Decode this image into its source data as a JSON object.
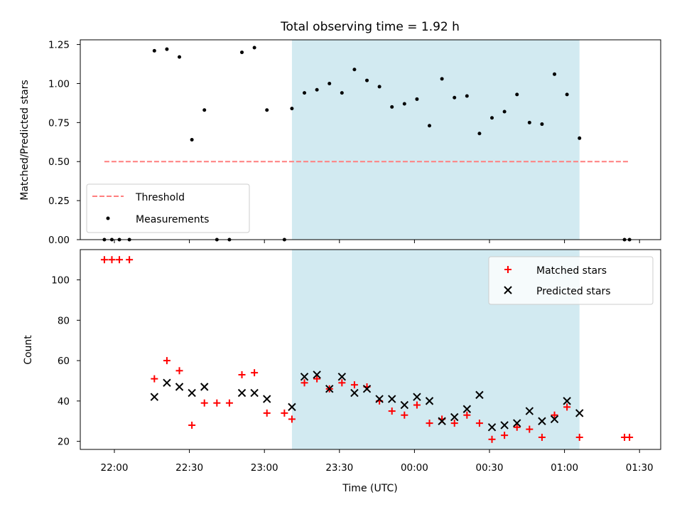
{
  "figure": {
    "title": "Total observing time = 1.92 h",
    "xlabel": "Time (UTC)"
  },
  "chart_data": [
    {
      "type": "scatter",
      "panel": "top",
      "ylabel": "Matched/Predicted stars",
      "ylim": [
        0,
        1.28
      ],
      "yticks": [
        "0.00",
        "0.25",
        "0.50",
        "0.75",
        "1.00",
        "1.25"
      ],
      "shaded_interval": {
        "start": "23:11",
        "end": "01:06",
        "color": "#add8e6"
      },
      "threshold": {
        "name": "Threshold",
        "value": 0.5,
        "from": "21:56",
        "to": "01:26",
        "color": "#ff7f7f",
        "style": "dashed"
      },
      "series": [
        {
          "name": "Measurements",
          "color": "#000000",
          "marker": "dot",
          "points": [
            [
              "21:56",
              0.0
            ],
            [
              "21:59",
              0.0
            ],
            [
              "22:02",
              0.0
            ],
            [
              "22:06",
              0.0
            ],
            [
              "22:16",
              1.21
            ],
            [
              "22:21",
              1.22
            ],
            [
              "22:26",
              1.17
            ],
            [
              "22:31",
              0.64
            ],
            [
              "22:36",
              0.83
            ],
            [
              "22:41",
              0.0
            ],
            [
              "22:46",
              0.0
            ],
            [
              "22:51",
              1.2
            ],
            [
              "22:56",
              1.23
            ],
            [
              "23:01",
              0.83
            ],
            [
              "23:08",
              0.0
            ],
            [
              "23:11",
              0.84
            ],
            [
              "23:16",
              0.94
            ],
            [
              "23:21",
              0.96
            ],
            [
              "23:26",
              1.0
            ],
            [
              "23:31",
              0.94
            ],
            [
              "23:36",
              1.09
            ],
            [
              "23:41",
              1.02
            ],
            [
              "23:46",
              0.98
            ],
            [
              "23:51",
              0.85
            ],
            [
              "23:56",
              0.87
            ],
            [
              "00:01",
              0.9
            ],
            [
              "00:06",
              0.73
            ],
            [
              "00:11",
              1.03
            ],
            [
              "00:16",
              0.91
            ],
            [
              "00:21",
              0.92
            ],
            [
              "00:26",
              0.68
            ],
            [
              "00:31",
              0.78
            ],
            [
              "00:36",
              0.82
            ],
            [
              "00:41",
              0.93
            ],
            [
              "00:46",
              0.75
            ],
            [
              "00:51",
              0.74
            ],
            [
              "00:56",
              1.06
            ],
            [
              "01:01",
              0.93
            ],
            [
              "01:06",
              0.65
            ],
            [
              "01:24",
              0.0
            ],
            [
              "01:26",
              0.0
            ]
          ]
        }
      ]
    },
    {
      "type": "scatter",
      "panel": "bottom",
      "ylabel": "Count",
      "ylim": [
        16,
        115
      ],
      "yticks": [
        "20",
        "40",
        "60",
        "80",
        "100"
      ],
      "xticks": [
        "22:00",
        "22:30",
        "23:00",
        "23:30",
        "00:00",
        "00:30",
        "01:00",
        "01:30"
      ],
      "shaded_interval": {
        "start": "23:11",
        "end": "01:06",
        "color": "#add8e6"
      },
      "series": [
        {
          "name": "Matched stars",
          "color": "#ff0000",
          "marker": "plus",
          "points": [
            [
              "21:56",
              110
            ],
            [
              "21:59",
              110
            ],
            [
              "22:02",
              110
            ],
            [
              "22:06",
              110
            ],
            [
              "22:16",
              51
            ],
            [
              "22:21",
              60
            ],
            [
              "22:26",
              55
            ],
            [
              "22:31",
              28
            ],
            [
              "22:36",
              39
            ],
            [
              "22:41",
              39
            ],
            [
              "22:46",
              39
            ],
            [
              "22:51",
              53
            ],
            [
              "22:56",
              54
            ],
            [
              "23:01",
              34
            ],
            [
              "23:08",
              34
            ],
            [
              "23:11",
              31
            ],
            [
              "23:16",
              49
            ],
            [
              "23:21",
              51
            ],
            [
              "23:26",
              46
            ],
            [
              "23:31",
              49
            ],
            [
              "23:36",
              48
            ],
            [
              "23:41",
              47
            ],
            [
              "23:46",
              40
            ],
            [
              "23:51",
              35
            ],
            [
              "23:56",
              33
            ],
            [
              "00:01",
              38
            ],
            [
              "00:06",
              29
            ],
            [
              "00:11",
              31
            ],
            [
              "00:16",
              29
            ],
            [
              "00:21",
              33
            ],
            [
              "00:26",
              29
            ],
            [
              "00:31",
              21
            ],
            [
              "00:36",
              23
            ],
            [
              "00:41",
              27
            ],
            [
              "00:46",
              26
            ],
            [
              "00:51",
              22
            ],
            [
              "00:56",
              33
            ],
            [
              "01:01",
              37
            ],
            [
              "01:06",
              22
            ],
            [
              "01:24",
              22
            ],
            [
              "01:26",
              22
            ]
          ]
        },
        {
          "name": "Predicted stars",
          "color": "#000000",
          "marker": "cross",
          "points": [
            [
              "22:16",
              42
            ],
            [
              "22:21",
              49
            ],
            [
              "22:26",
              47
            ],
            [
              "22:31",
              44
            ],
            [
              "22:36",
              47
            ],
            [
              "22:51",
              44
            ],
            [
              "22:56",
              44
            ],
            [
              "23:01",
              41
            ],
            [
              "23:11",
              37
            ],
            [
              "23:16",
              52
            ],
            [
              "23:21",
              53
            ],
            [
              "23:26",
              46
            ],
            [
              "23:31",
              52
            ],
            [
              "23:36",
              44
            ],
            [
              "23:41",
              46
            ],
            [
              "23:46",
              41
            ],
            [
              "23:51",
              41
            ],
            [
              "23:56",
              38
            ],
            [
              "00:01",
              42
            ],
            [
              "00:06",
              40
            ],
            [
              "00:11",
              30
            ],
            [
              "00:16",
              32
            ],
            [
              "00:21",
              36
            ],
            [
              "00:26",
              43
            ],
            [
              "00:31",
              27
            ],
            [
              "00:36",
              28
            ],
            [
              "00:41",
              29
            ],
            [
              "00:46",
              35
            ],
            [
              "00:51",
              30
            ],
            [
              "00:56",
              31
            ],
            [
              "01:01",
              40
            ],
            [
              "01:06",
              34
            ]
          ]
        }
      ]
    }
  ]
}
